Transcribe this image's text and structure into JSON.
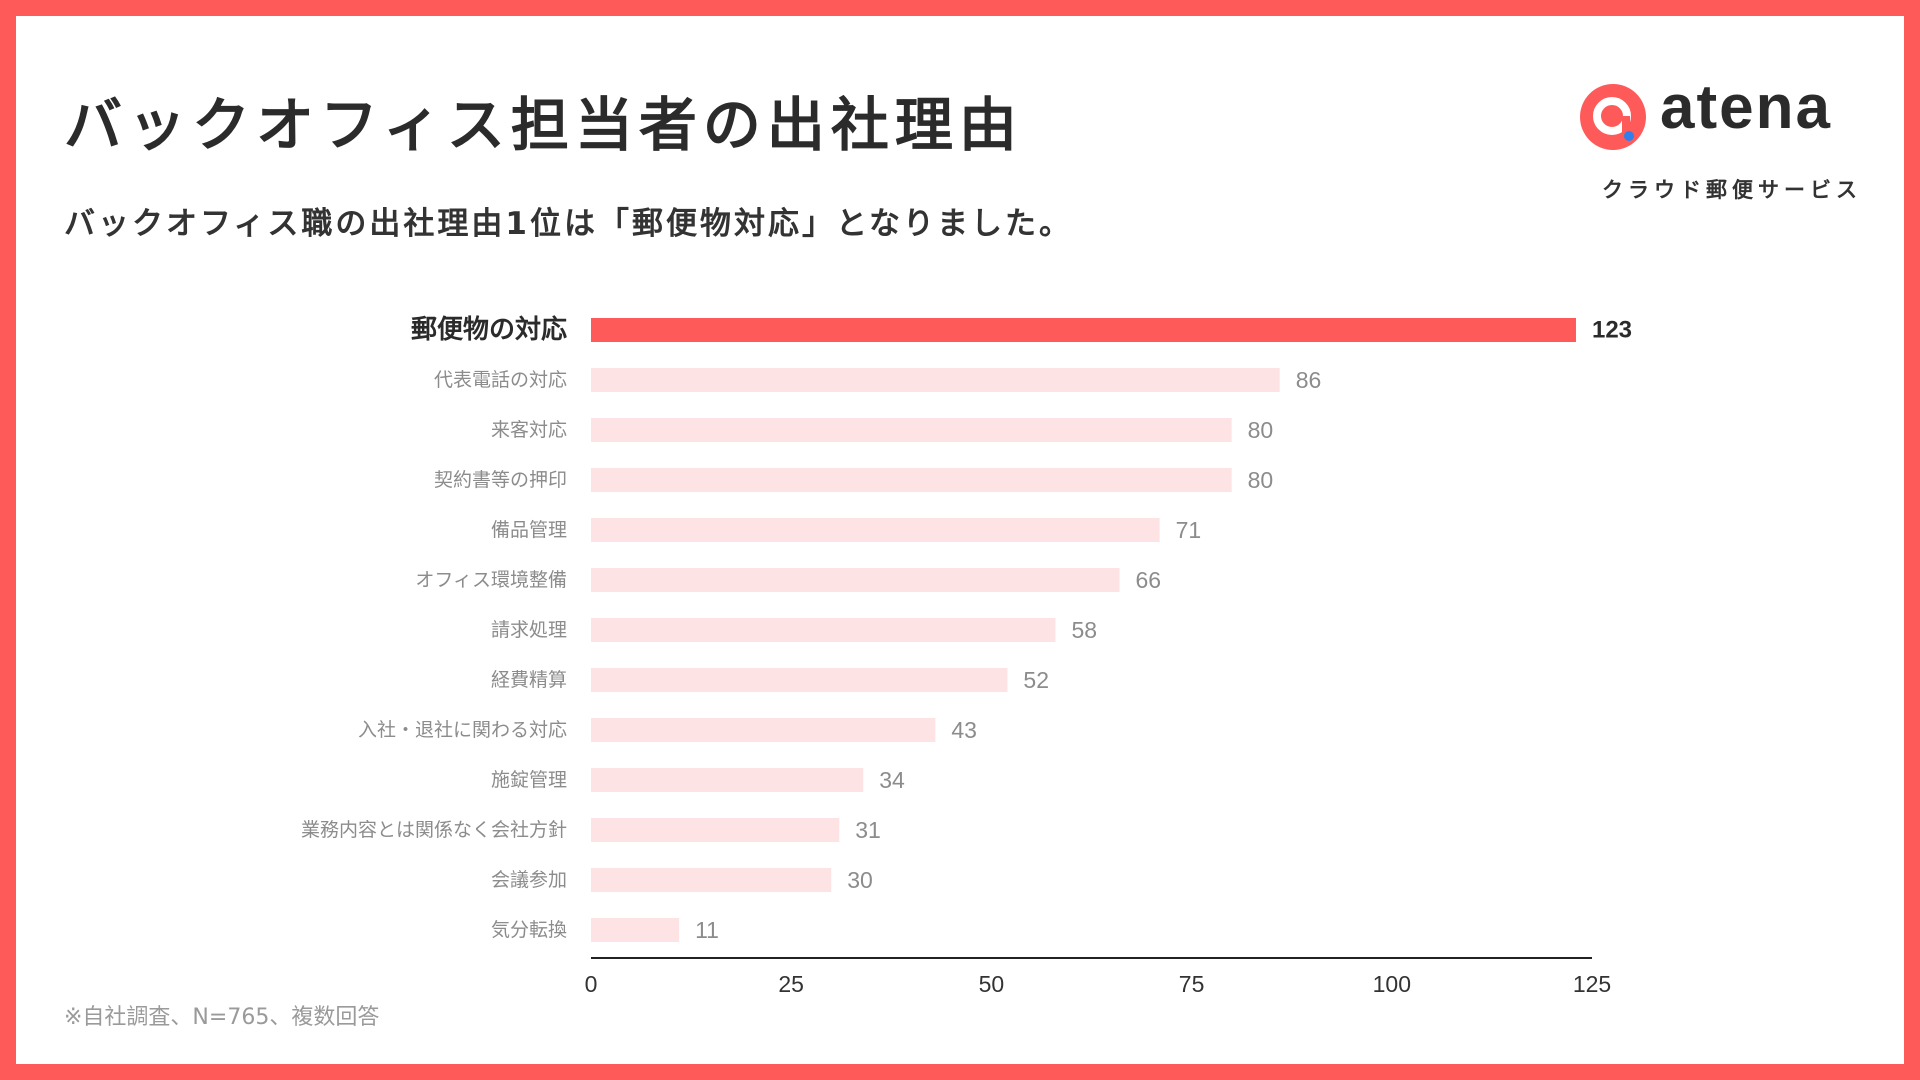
{
  "header": {
    "title": "バックオフィス担当者の出社理由",
    "subtitle": "バックオフィス職の出社理由1位は「郵便物対応」となりました。"
  },
  "brand": {
    "name": "atena",
    "tagline": "クラウド郵便サービス",
    "accent_color": "#ff5a5a",
    "dot_color": "#2f80ed"
  },
  "footnote": "※自社調査、N=765、複数回答",
  "colors": {
    "highlight_bar": "#ff5a5a",
    "bar": "#fde3e3",
    "highlight_label": "#2b2b2b",
    "label": "#8c8c8c",
    "axis": "#222222"
  },
  "chart_data": {
    "type": "bar",
    "orientation": "horizontal",
    "title": "バックオフィス担当者の出社理由",
    "xlabel": "",
    "ylabel": "",
    "xlim": [
      0,
      125
    ],
    "xticks": [
      0,
      25,
      50,
      75,
      100,
      125
    ],
    "highlight_index": 0,
    "categories": [
      "郵便物の対応",
      "代表電話の対応",
      "来客対応",
      "契約書等の押印",
      "備品管理",
      "オフィス環境整備",
      "請求処理",
      "経費精算",
      "入社・退社に関わる対応",
      "施錠管理",
      "業務内容とは関係なく会社方針",
      "会議参加",
      "気分転換"
    ],
    "values": [
      123,
      86,
      80,
      80,
      71,
      66,
      58,
      52,
      43,
      34,
      31,
      30,
      11
    ]
  }
}
